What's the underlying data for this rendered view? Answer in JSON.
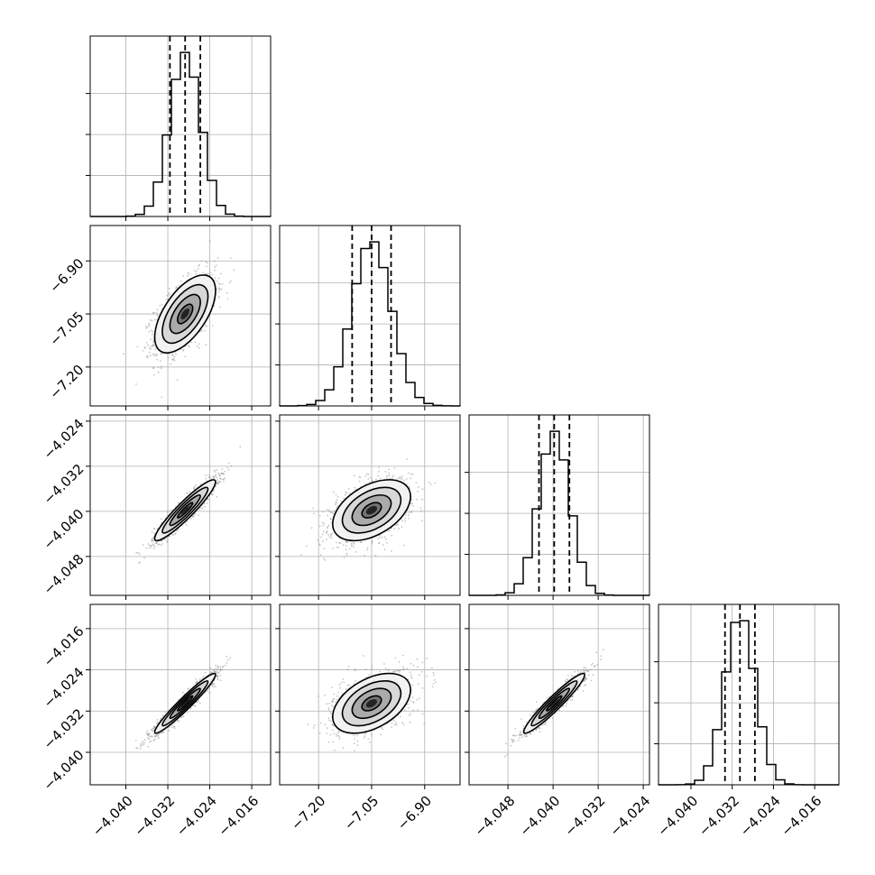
{
  "chart_data": {
    "type": "corner",
    "grid": true,
    "parameters": [
      {
        "name": "",
        "range": [
          -4.0468,
          -4.0124
        ],
        "ticks": [
          -4.04,
          -4.032,
          -4.024,
          -4.016
        ],
        "tick_labels": [
          "−4.040",
          "−4.032",
          "−4.024",
          "−4.016"
        ],
        "mean": -4.0287,
        "sd": 0.0029,
        "quantiles": [
          -4.0316,
          -4.0287,
          -4.0258
        ]
      },
      {
        "name": "",
        "range": [
          -7.31,
          -6.8
        ],
        "ticks": [
          -7.2,
          -7.05,
          -6.9
        ],
        "tick_labels": [
          "−7.20",
          "−7.05",
          "−6.90"
        ],
        "mean": -7.05,
        "sd": 0.055,
        "quantiles": [
          -7.105,
          -7.05,
          -6.995
        ]
      },
      {
        "name": "",
        "range": [
          -4.0549,
          -4.0229
        ],
        "ticks": [
          -4.048,
          -4.04,
          -4.032,
          -4.024
        ],
        "tick_labels": [
          "−4.048",
          "−4.040",
          "−4.032",
          "−4.024"
        ],
        "mean": -4.0398,
        "sd": 0.0027,
        "quantiles": [
          -4.0425,
          -4.0398,
          -4.0371
        ]
      },
      {
        "name": "",
        "range": [
          -4.0463,
          -4.0113
        ],
        "ticks": [
          -4.04,
          -4.032,
          -4.024,
          -4.016
        ],
        "tick_labels": [
          "−4.040",
          "−4.032",
          "−4.024",
          "−4.016"
        ],
        "mean": -4.0305,
        "sd": 0.0029,
        "quantiles": [
          -4.0334,
          -4.0305,
          -4.0276
        ]
      }
    ],
    "pairs": [
      {
        "row": 1,
        "col": 0,
        "corr": 0.6
      },
      {
        "row": 2,
        "col": 0,
        "corr": 0.93
      },
      {
        "row": 2,
        "col": 1,
        "corr": 0.45
      },
      {
        "row": 3,
        "col": 0,
        "corr": 0.96
      },
      {
        "row": 3,
        "col": 1,
        "corr": 0.45
      },
      {
        "row": 3,
        "col": 2,
        "corr": 0.95
      }
    ],
    "histogram_bins": 20,
    "contour_levels_sigma": [
      0.5,
      1.0,
      1.5,
      2.0
    ],
    "colors": {
      "line": "#000000",
      "grid": "#b0b0b0",
      "points": "#808080",
      "fill_dark": "#000000",
      "fill_light": "#ffffff"
    }
  }
}
